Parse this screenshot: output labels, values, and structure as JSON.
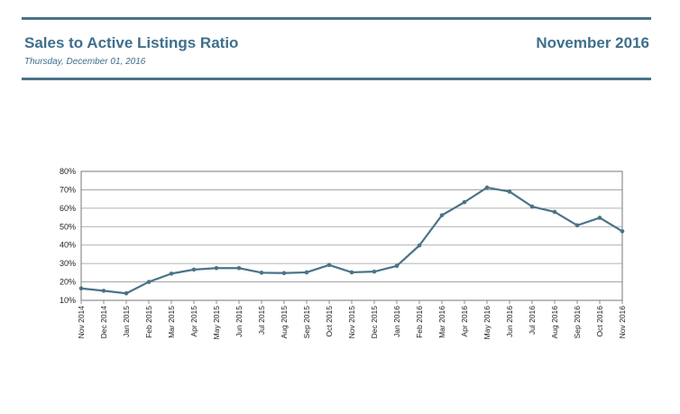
{
  "header": {
    "title": "Sales to Active Listings Ratio",
    "date": "Thursday, December 01, 2016",
    "period": "November 2016"
  },
  "colors": {
    "accent": "#4a7389",
    "title_text": "#3f6f8c",
    "line": "#4a7389",
    "grid": "#999999"
  },
  "chart_data": {
    "type": "line",
    "title": "",
    "xlabel": "",
    "ylabel": "",
    "ylim": [
      10,
      80
    ],
    "yticks": [
      "10%",
      "20%",
      "30%",
      "40%",
      "50%",
      "60%",
      "70%",
      "80%"
    ],
    "grid": true,
    "categories": [
      "Nov 2014",
      "Dec 2014",
      "Jan 2015",
      "Feb 2015",
      "Mar 2015",
      "Apr 2015",
      "May 2015",
      "Jun 2015",
      "Jul 2015",
      "Aug 2015",
      "Sep 2015",
      "Oct 2015",
      "Nov 2015",
      "Dec 2015",
      "Jan 2016",
      "Feb 2016",
      "Mar 2016",
      "Apr 2016",
      "May 2016",
      "Jun 2016",
      "Jul 2016",
      "Aug 2016",
      "Sep 2016",
      "Oct 2016",
      "Nov 2016"
    ],
    "series": [
      {
        "values": [
          16.5,
          15.2,
          13.8,
          20,
          24.5,
          26.7,
          27.5,
          27.5,
          25,
          24.8,
          25.2,
          29.2,
          25.2,
          25.6,
          28.7,
          39.8,
          56.2,
          63.3,
          71.2,
          69,
          60.9,
          58,
          50.7,
          54.8,
          47.5
        ]
      }
    ]
  }
}
